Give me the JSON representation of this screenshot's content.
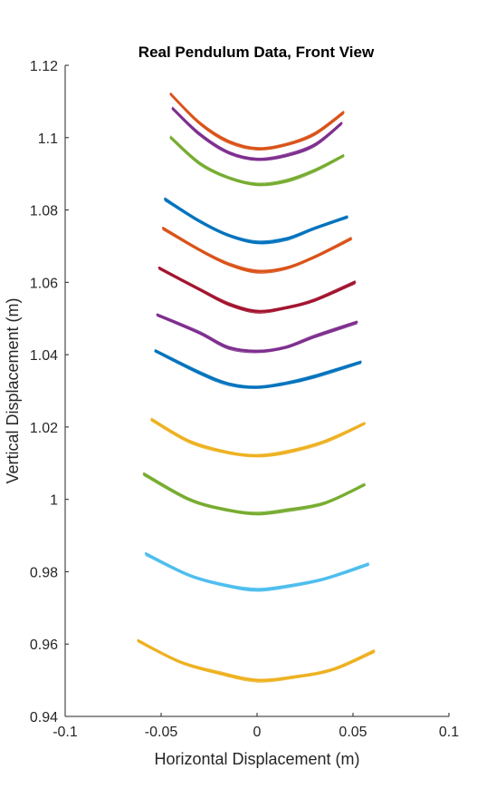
{
  "chart_data": {
    "type": "line",
    "title": "Real Pendulum Data, Front View",
    "xlabel": "Horizontal Displacement (m)",
    "ylabel": "Vertical Displacement (m)",
    "xlim": [
      -0.1,
      0.1
    ],
    "ylim": [
      0.94,
      1.12
    ],
    "xticks": [
      "-0.1",
      "-0.05",
      "0",
      "0.05",
      "0.1"
    ],
    "yticks": [
      "0.94",
      "0.96",
      "0.98",
      "1",
      "1.02",
      "1.04",
      "1.06",
      "1.08",
      "1.1",
      "1.12"
    ],
    "grid": false,
    "legend": "none",
    "series": [
      {
        "color": "#D95319",
        "x": [
          -0.045,
          -0.03,
          -0.015,
          0.0,
          0.015,
          0.03,
          0.045
        ],
        "y": [
          1.112,
          1.104,
          1.099,
          1.097,
          1.098,
          1.101,
          1.107
        ]
      },
      {
        "color": "#7E2F8E",
        "x": [
          -0.044,
          -0.03,
          -0.015,
          0.0,
          0.015,
          0.03,
          0.044
        ],
        "y": [
          1.108,
          1.101,
          1.096,
          1.094,
          1.095,
          1.098,
          1.104
        ]
      },
      {
        "color": "#77AC30",
        "x": [
          -0.045,
          -0.03,
          -0.015,
          0.0,
          0.015,
          0.03,
          0.045
        ],
        "y": [
          1.1,
          1.093,
          1.089,
          1.087,
          1.088,
          1.091,
          1.095
        ]
      },
      {
        "color": "#0072BD",
        "x": [
          -0.048,
          -0.03,
          -0.015,
          0.0,
          0.015,
          0.03,
          0.047
        ],
        "y": [
          1.083,
          1.077,
          1.073,
          1.071,
          1.072,
          1.075,
          1.078
        ]
      },
      {
        "color": "#D95319",
        "x": [
          -0.049,
          -0.03,
          -0.015,
          0.0,
          0.015,
          0.03,
          0.049
        ],
        "y": [
          1.075,
          1.069,
          1.065,
          1.063,
          1.064,
          1.067,
          1.072
        ]
      },
      {
        "color": "#A2142F",
        "x": [
          -0.051,
          -0.03,
          -0.015,
          0.0,
          0.015,
          0.03,
          0.051
        ],
        "y": [
          1.064,
          1.058,
          1.054,
          1.052,
          1.053,
          1.055,
          1.06
        ]
      },
      {
        "color": "#7E2F8E",
        "x": [
          -0.052,
          -0.03,
          -0.015,
          0.0,
          0.015,
          0.03,
          0.052
        ],
        "y": [
          1.051,
          1.046,
          1.042,
          1.041,
          1.042,
          1.045,
          1.049
        ]
      },
      {
        "color": "#0072BD",
        "x": [
          -0.053,
          -0.03,
          -0.015,
          0.0,
          0.015,
          0.03,
          0.054
        ],
        "y": [
          1.041,
          1.035,
          1.032,
          1.031,
          1.032,
          1.034,
          1.038
        ]
      },
      {
        "color": "#EDB120",
        "x": [
          -0.055,
          -0.035,
          -0.015,
          0.0,
          0.015,
          0.035,
          0.056
        ],
        "y": [
          1.022,
          1.016,
          1.013,
          1.012,
          1.013,
          1.016,
          1.021
        ]
      },
      {
        "color": "#77AC30",
        "x": [
          -0.059,
          -0.035,
          -0.015,
          0.0,
          0.015,
          0.035,
          0.056
        ],
        "y": [
          1.007,
          1.0,
          0.997,
          0.996,
          0.997,
          0.999,
          1.004
        ]
      },
      {
        "color": "#4DBEEE",
        "x": [
          -0.058,
          -0.035,
          -0.015,
          0.0,
          0.015,
          0.035,
          0.058
        ],
        "y": [
          0.985,
          0.979,
          0.976,
          0.975,
          0.976,
          0.978,
          0.982
        ]
      },
      {
        "color": "#EDB120",
        "x": [
          -0.062,
          -0.04,
          -0.02,
          0.0,
          0.02,
          0.04,
          0.061
        ],
        "y": [
          0.961,
          0.955,
          0.952,
          0.95,
          0.951,
          0.953,
          0.958
        ]
      }
    ]
  }
}
